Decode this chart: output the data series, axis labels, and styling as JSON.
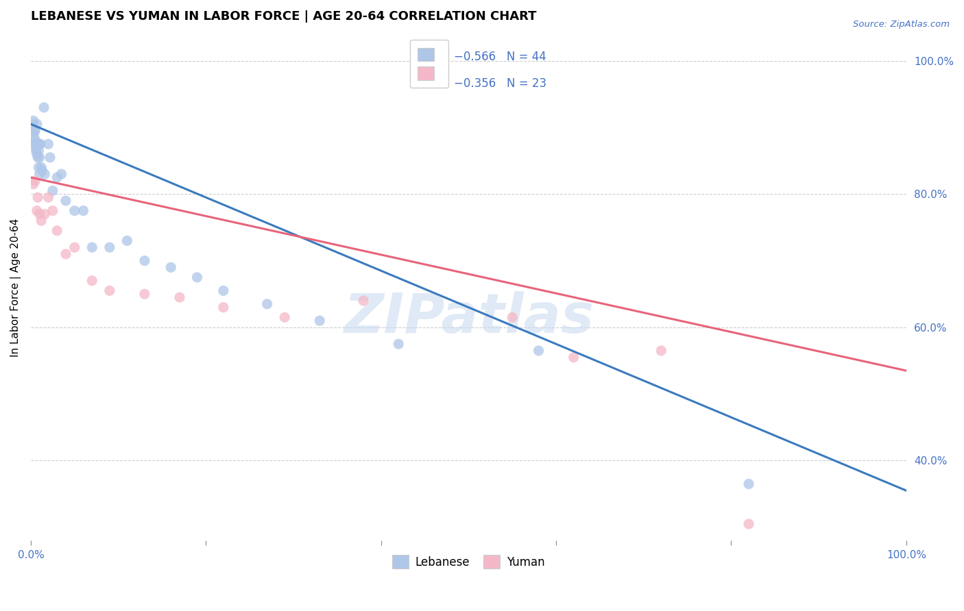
{
  "title": "LEBANESE VS YUMAN IN LABOR FORCE | AGE 20-64 CORRELATION CHART",
  "source_text": "Source: ZipAtlas.com",
  "ylabel": "In Labor Force | Age 20-64",
  "xlim": [
    0.0,
    1.0
  ],
  "ylim": [
    0.28,
    1.04
  ],
  "x_ticks": [
    0.0,
    0.2,
    0.4,
    0.6,
    0.8,
    1.0
  ],
  "x_tick_labels": [
    "0.0%",
    "",
    "",
    "",
    "",
    "100.0%"
  ],
  "y_ticks": [
    0.4,
    0.6,
    0.8,
    1.0
  ],
  "y_tick_labels": [
    "40.0%",
    "60.0%",
    "80.0%",
    "100.0%"
  ],
  "legend_r1": "R = −0.566",
  "legend_n1": "N = 44",
  "legend_r2": "R = −0.356",
  "legend_n2": "N = 23",
  "blue_fill_color": "#aec6e8",
  "pink_fill_color": "#f4b8c8",
  "blue_line_color": "#3a7abf",
  "pink_line_color": "#e8637a",
  "text_blue_color": "#4472c4",
  "watermark": "ZIPatlas",
  "title_fontsize": 13,
  "label_fontsize": 11,
  "tick_fontsize": 11,
  "legend_fontsize": 12,
  "blue_scatter_x": [
    0.002,
    0.003,
    0.004,
    0.004,
    0.005,
    0.005,
    0.005,
    0.006,
    0.006,
    0.007,
    0.007,
    0.007,
    0.008,
    0.008,
    0.009,
    0.009,
    0.01,
    0.01,
    0.01,
    0.011,
    0.012,
    0.013,
    0.015,
    0.016,
    0.02,
    0.022,
    0.025,
    0.03,
    0.035,
    0.04,
    0.05,
    0.06,
    0.07,
    0.09,
    0.11,
    0.13,
    0.16,
    0.19,
    0.22,
    0.27,
    0.33,
    0.42,
    0.58,
    0.82
  ],
  "blue_scatter_y": [
    0.905,
    0.91,
    0.895,
    0.885,
    0.88,
    0.895,
    0.875,
    0.865,
    0.87,
    0.905,
    0.875,
    0.86,
    0.875,
    0.855,
    0.865,
    0.84,
    0.875,
    0.855,
    0.83,
    0.875,
    0.84,
    0.835,
    0.93,
    0.83,
    0.875,
    0.855,
    0.805,
    0.825,
    0.83,
    0.79,
    0.775,
    0.775,
    0.72,
    0.72,
    0.73,
    0.7,
    0.69,
    0.675,
    0.655,
    0.635,
    0.61,
    0.575,
    0.565,
    0.365
  ],
  "pink_scatter_x": [
    0.003,
    0.005,
    0.007,
    0.008,
    0.01,
    0.012,
    0.016,
    0.02,
    0.025,
    0.03,
    0.04,
    0.05,
    0.07,
    0.09,
    0.13,
    0.17,
    0.22,
    0.29,
    0.38,
    0.55,
    0.62,
    0.72,
    0.82
  ],
  "pink_scatter_y": [
    0.815,
    0.82,
    0.775,
    0.795,
    0.77,
    0.76,
    0.77,
    0.795,
    0.775,
    0.745,
    0.71,
    0.72,
    0.67,
    0.655,
    0.65,
    0.645,
    0.63,
    0.615,
    0.64,
    0.615,
    0.555,
    0.565,
    0.305
  ],
  "blue_line_x": [
    0.0,
    1.0
  ],
  "blue_line_y": [
    0.905,
    0.355
  ],
  "pink_line_x": [
    0.0,
    1.0
  ],
  "pink_line_y": [
    0.825,
    0.535
  ],
  "bottom_legend_labels": [
    "Lebanese",
    "Yuman"
  ]
}
